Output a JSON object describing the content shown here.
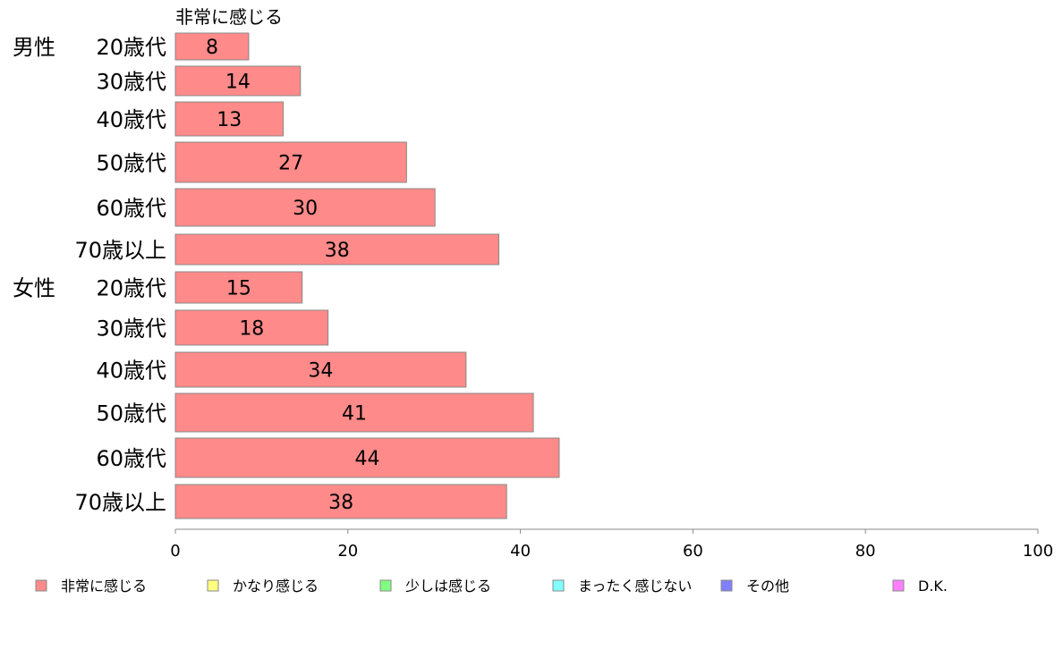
{
  "chart_data": {
    "type": "bar",
    "orientation": "horizontal",
    "stacked": true,
    "title": "",
    "series_title": "非常に感じる",
    "groups": [
      {
        "name": "男性",
        "rows": [
          {
            "label": "20歳代",
            "value": 8
          },
          {
            "label": "30歳代",
            "value": 14
          },
          {
            "label": "40歳代",
            "value": 13
          },
          {
            "label": "50歳代",
            "value": 27
          },
          {
            "label": "60歳代",
            "value": 30
          },
          {
            "label": "70歳以上",
            "value": 38
          }
        ]
      },
      {
        "name": "女性",
        "rows": [
          {
            "label": "20歳代",
            "value": 15
          },
          {
            "label": "30歳代",
            "value": 18
          },
          {
            "label": "40歳代",
            "value": 34
          },
          {
            "label": "50歳代",
            "value": 41
          },
          {
            "label": "60歳代",
            "value": 44
          },
          {
            "label": "70歳以上",
            "value": 38
          }
        ]
      }
    ],
    "bar_values": [
      {
        "label": "20歳代",
        "value": 8.5
      },
      {
        "label": "30歳代",
        "value": 14.5
      },
      {
        "label": "40歳代",
        "value": 12.5
      },
      {
        "label": "50歳代",
        "value": 26.8
      },
      {
        "label": "60歳代",
        "value": 30.1
      },
      {
        "label": "70歳以上",
        "value": 37.5
      },
      {
        "label": "20歳代",
        "value": 14.7
      },
      {
        "label": "30歳代",
        "value": 17.7
      },
      {
        "label": "40歳代",
        "value": 33.7
      },
      {
        "label": "50歳代",
        "value": 41.5
      },
      {
        "label": "60歳代",
        "value": 44.5
      },
      {
        "label": "70歳以上",
        "value": 38.4
      }
    ],
    "xlim": [
      0,
      100
    ],
    "xticks": [
      0,
      20,
      40,
      60,
      80,
      100
    ],
    "grid": false,
    "legend": {
      "placement": "bottom",
      "entries": [
        {
          "name": "非常に感じる",
          "color": "#ff8a8a"
        },
        {
          "name": "かなり感じる",
          "color": "#ffff80"
        },
        {
          "name": "少しは感じる",
          "color": "#80ff80"
        },
        {
          "name": "まったく感じない",
          "color": "#80ffff"
        },
        {
          "name": "その他",
          "color": "#8080ff"
        },
        {
          "name": "D.K.",
          "color": "#ff80ff"
        }
      ]
    },
    "colors": {
      "bar_fill": "#ff8a8a",
      "bar_stroke": "#888888",
      "axis": "#888888"
    }
  }
}
